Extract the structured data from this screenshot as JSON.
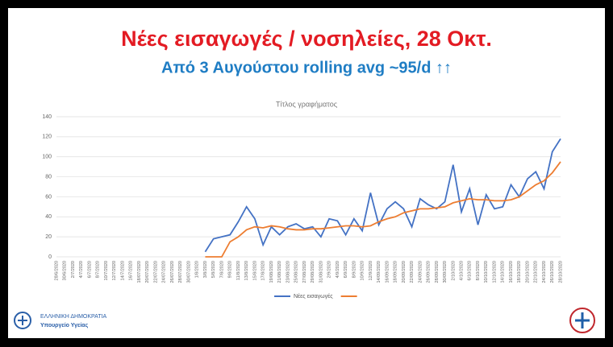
{
  "chart_data": {
    "type": "line",
    "title": "Νέες εισαγωγές / νοσηλείες, 28 Οκτ.",
    "subtitle": "Από 3 Αυγούστου rolling avg ~95/d ↑↑",
    "chart_title": "Τίτλος γραφήματος",
    "categories": [
      "28/6/2020",
      "30/6/2020",
      "2/7/2020",
      "4/7/2020",
      "6/7/2020",
      "8/7/2020",
      "10/7/2020",
      "12/7/2020",
      "14/7/2020",
      "16/7/2020",
      "18/07/2020",
      "20/07/2020",
      "22/07/2020",
      "24/07/2020",
      "26/07/2020",
      "28/07/2020",
      "30/07/2020",
      "1/8/2020",
      "3/8/2020",
      "5/8/2020",
      "7/8/2020",
      "9/8/2020",
      "11/8/2020",
      "13/8/2020",
      "15/8/2020",
      "17/8/2020",
      "19/08/2020",
      "21/08/2020",
      "23/08/2020",
      "25/08/2020",
      "27/08/2020",
      "29/08/2020",
      "31/08/2020",
      "2/9/2020",
      "4/9/2020",
      "6/9/2020",
      "8/9/2020",
      "10/9/2020",
      "12/9/2020",
      "14/09/2020",
      "16/09/2020",
      "18/09/2020",
      "20/09/2020",
      "22/09/2020",
      "24/09/2020",
      "26/09/2020",
      "28/09/2020",
      "30/09/2020",
      "2/10/2020",
      "4/10/2020",
      "6/10/2020",
      "8/10/2020",
      "10/10/2020",
      "12/10/2020",
      "14/10/2020",
      "16/10/2020",
      "18/10/2020",
      "20/10/2020",
      "22/10/2020",
      "24/10/2020",
      "26/10/2020",
      "28/10/2020"
    ],
    "series": [
      {
        "name": "Νέες εισαγωγές",
        "color": "#4472c4",
        "values": [
          null,
          null,
          null,
          null,
          null,
          null,
          null,
          null,
          null,
          null,
          null,
          null,
          null,
          null,
          null,
          null,
          null,
          null,
          5,
          18,
          20,
          22,
          35,
          50,
          38,
          12,
          30,
          22,
          30,
          33,
          28,
          30,
          20,
          38,
          36,
          22,
          38,
          26,
          64,
          32,
          48,
          55,
          48,
          30,
          58,
          52,
          48,
          55,
          92,
          45,
          68,
          32,
          62,
          48,
          50,
          72,
          60,
          78,
          85,
          68,
          105,
          118
        ]
      },
      {
        "color": "#ed7d31",
        "values": [
          null,
          null,
          null,
          null,
          null,
          null,
          null,
          null,
          null,
          null,
          null,
          null,
          null,
          null,
          null,
          null,
          null,
          null,
          0,
          0,
          0,
          15,
          20,
          27,
          30,
          29,
          31,
          30,
          28,
          27,
          27,
          28,
          28,
          29,
          30,
          31,
          31,
          30,
          31,
          35,
          38,
          40,
          44,
          46,
          48,
          48,
          49,
          50,
          54,
          56,
          58,
          57,
          57,
          56,
          56,
          57,
          60,
          66,
          72,
          76,
          84,
          95
        ]
      }
    ],
    "ylim": [
      0,
      140
    ],
    "yticks": [
      0,
      20,
      40,
      60,
      80,
      100,
      120,
      140
    ],
    "grid": true
  },
  "footer": {
    "org": "ΕΛΛΗΝΙΚΗ ΔΗΜΟΚΡΑΤΙΑ",
    "ministry": "Υπουργείο Υγείας"
  }
}
